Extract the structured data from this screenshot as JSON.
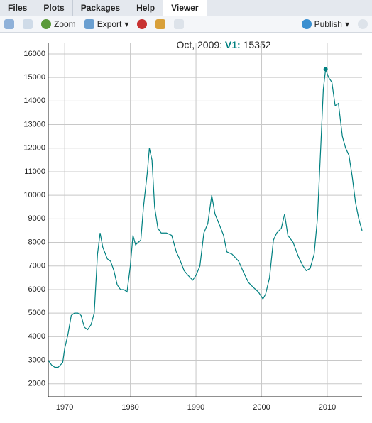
{
  "tabs": [
    "Files",
    "Plots",
    "Packages",
    "Help",
    "Viewer"
  ],
  "toolbar": {
    "zoom": "Zoom",
    "export": "Export",
    "publish": "Publish"
  },
  "chart_data": {
    "type": "line",
    "hover": {
      "date": "Oct, 2009:",
      "series": "V1:"
    },
    "series": [
      {
        "name": "V1",
        "color": "#008080",
        "x": [
          1967.5,
          1968,
          1968.5,
          1969,
          1969.7,
          1970,
          1970.5,
          1971,
          1971.5,
          1972,
          1972.5,
          1973,
          1973.5,
          1974,
          1974.5,
          1975,
          1975.4,
          1975.8,
          1976.5,
          1977,
          1977.5,
          1978,
          1978.5,
          1979,
          1979.5,
          1980,
          1980.4,
          1980.8,
          1981.2,
          1981.6,
          1982,
          1982.6,
          1982.9,
          1983.3,
          1983.7,
          1984.2,
          1984.7,
          1985.5,
          1986.3,
          1987,
          1987.5,
          1988.2,
          1988.8,
          1989.5,
          1990,
          1990.6,
          1991.2,
          1991.8,
          1992.4,
          1992.9,
          1993.5,
          1994.2,
          1994.7,
          1995.5,
          1996.5,
          1997.3,
          1998,
          1998.7,
          1999.5,
          2000.2,
          2000.6,
          2001.2,
          2001.8,
          2002.3,
          2003,
          2003.5,
          2004,
          2004.8,
          2005.6,
          2006.3,
          2006.8,
          2007.4,
          2008,
          2008.5,
          2009,
          2009.4,
          2009.75,
          2010.2,
          2010.7,
          2011.2,
          2011.7,
          2012.3,
          2012.8,
          2013.3,
          2013.8,
          2014.3,
          2014.8,
          2015.3
        ],
        "values": [
          3000,
          2800,
          2700,
          2700,
          2900,
          3500,
          4100,
          4900,
          5000,
          5000,
          4900,
          4400,
          4300,
          4500,
          5000,
          7500,
          8400,
          7800,
          7300,
          7200,
          6800,
          6200,
          6000,
          6000,
          5900,
          7000,
          8300,
          7900,
          8000,
          8100,
          9500,
          11000,
          12000,
          11500,
          9500,
          8600,
          8400,
          8400,
          8300,
          7600,
          7300,
          6800,
          6600,
          6400,
          6600,
          7000,
          8400,
          8800,
          10000,
          9200,
          8800,
          8300,
          7600,
          7500,
          7200,
          6700,
          6300,
          6100,
          5900,
          5600,
          5800,
          6500,
          8100,
          8400,
          8600,
          9200,
          8300,
          8000,
          7400,
          7000,
          6800,
          6900,
          7500,
          9000,
          12000,
          14500,
          15352,
          15000,
          14800,
          13800,
          13900,
          12500,
          12000,
          11700,
          10800,
          9700,
          9000,
          8500
        ]
      }
    ],
    "xlim": [
      1967.5,
      2015.3
    ],
    "xticks": [
      1970,
      1980,
      1990,
      2000,
      2010
    ],
    "ylim": [
      1450,
      16450
    ],
    "yticks": [
      2000,
      3000,
      4000,
      5000,
      6000,
      7000,
      8000,
      9000,
      10000,
      11000,
      12000,
      13000,
      14000,
      15000,
      16000
    ],
    "grid": true
  }
}
